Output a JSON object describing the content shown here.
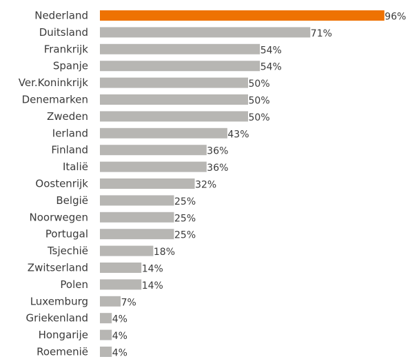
{
  "chart_data": {
    "type": "bar",
    "orientation": "horizontal",
    "categories": [
      "Nederland",
      "Duitsland",
      "Frankrijk",
      "Spanje",
      "Ver.Koninkrijk",
      "Denemarken",
      "Zweden",
      "Ierland",
      "Finland",
      "Italië",
      "Oostenrijk",
      "België",
      "Noorwegen",
      "Portugal",
      "Tsjechië",
      "Zwitserland",
      "Polen",
      "Luxemburg",
      "Griekenland",
      "Hongarije",
      "Roemenië"
    ],
    "values": [
      96,
      71,
      54,
      54,
      50,
      50,
      50,
      43,
      36,
      36,
      32,
      25,
      25,
      25,
      18,
      14,
      14,
      7,
      4,
      4,
      4
    ],
    "value_labels": [
      "96%",
      "71%",
      "54%",
      "54%",
      "50%",
      "50%",
      "50%",
      "43%",
      "36%",
      "36%",
      "32%",
      "25%",
      "25%",
      "25%",
      "18%",
      "14%",
      "14%",
      "7%",
      "4%",
      "4%",
      "4%"
    ],
    "highlight_index": 0,
    "xlim": [
      0,
      100
    ],
    "title": "",
    "xlabel": "",
    "ylabel": "",
    "grid": false,
    "legend": "none",
    "colors": {
      "highlight": "#ee7203",
      "default": "#b7b6b3",
      "text": "#3a3a3a"
    }
  }
}
